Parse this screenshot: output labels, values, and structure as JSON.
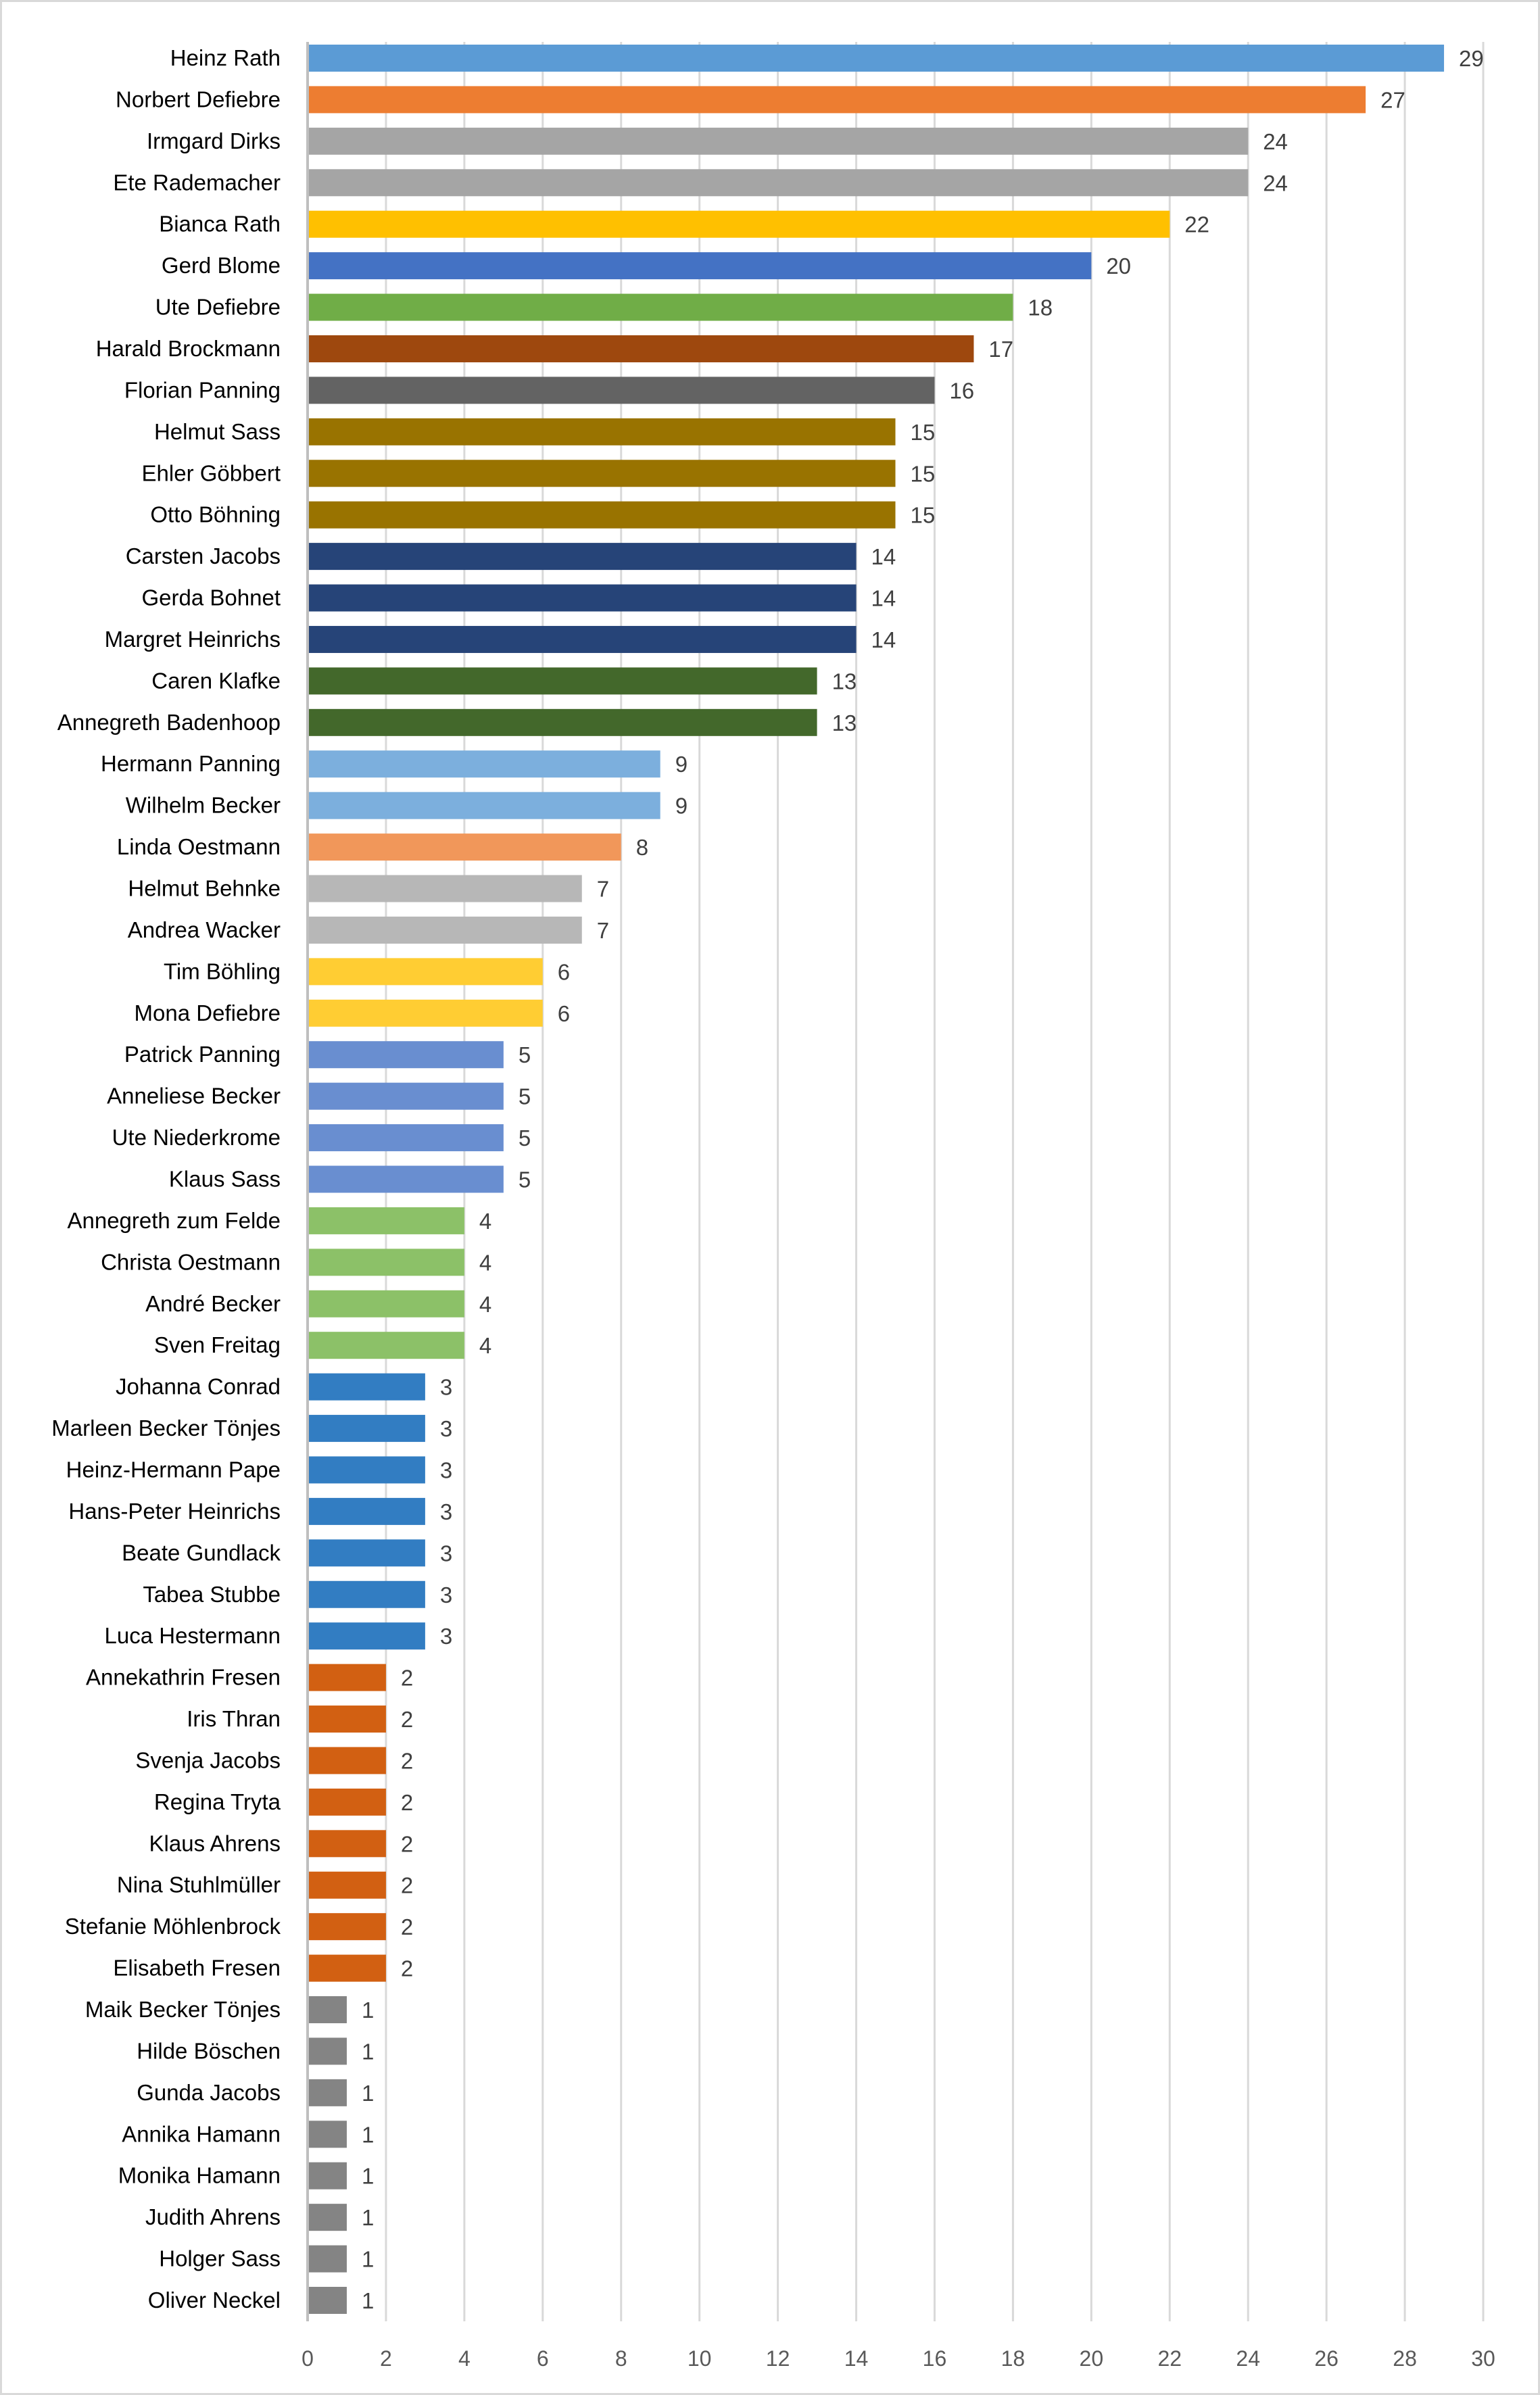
{
  "chart_data": {
    "type": "bar",
    "orientation": "horizontal",
    "title": "",
    "xlabel": "",
    "ylabel": "",
    "xlim": [
      0,
      30
    ],
    "x_ticks": [
      0,
      2,
      4,
      6,
      8,
      10,
      12,
      14,
      16,
      18,
      20,
      22,
      24,
      26,
      28,
      30
    ],
    "grid": "vertical",
    "data_labels": true,
    "categories": [
      "Heinz Rath",
      "Norbert Defiebre",
      "Irmgard Dirks",
      "Ete Rademacher",
      "Bianca Rath",
      "Gerd Blome",
      "Ute Defiebre",
      "Harald Brockmann",
      "Florian Panning",
      "Helmut Sass",
      "Ehler Göbbert",
      "Otto Böhning",
      "Carsten Jacobs",
      "Gerda Bohnet",
      "Margret Heinrichs",
      "Caren Klafke",
      "Annegreth Badenhoop",
      "Hermann Panning",
      "Wilhelm Becker",
      "Linda Oestmann",
      "Helmut Behnke",
      "Andrea Wacker",
      "Tim Böhling",
      "Mona Defiebre",
      "Patrick Panning",
      "Anneliese Becker",
      "Ute Niederkrome",
      "Klaus Sass",
      "Annegreth zum Felde",
      "Christa Oestmann",
      "André Becker",
      "Sven Freitag",
      "Johanna Conrad",
      "Marleen Becker Tönjes",
      "Heinz-Hermann Pape",
      "Hans-Peter Heinrichs",
      "Beate Gundlack",
      "Tabea Stubbe",
      "Luca Hestermann",
      "Annekathrin Fresen",
      "Iris Thran",
      "Svenja Jacobs",
      "Regina Tryta",
      "Klaus Ahrens",
      "Nina Stuhlmüller",
      "Stefanie Möhlenbrock",
      "Elisabeth Fresen",
      "Maik Becker Tönjes",
      "Hilde Böschen",
      "Gunda Jacobs",
      "Annika Hamann",
      "Monika Hamann",
      "Judith Ahrens",
      "Holger Sass",
      "Oliver Neckel"
    ],
    "values": [
      29,
      27,
      24,
      24,
      22,
      20,
      18,
      17,
      16,
      15,
      15,
      15,
      14,
      14,
      14,
      13,
      13,
      9,
      9,
      8,
      7,
      7,
      6,
      6,
      5,
      5,
      5,
      5,
      4,
      4,
      4,
      4,
      3,
      3,
      3,
      3,
      3,
      3,
      3,
      2,
      2,
      2,
      2,
      2,
      2,
      2,
      2,
      1,
      1,
      1,
      1,
      1,
      1,
      1,
      1
    ],
    "colors": [
      "#5b9bd5",
      "#ed7d31",
      "#a5a5a5",
      "#a5a5a5",
      "#ffc000",
      "#4472c4",
      "#70ad47",
      "#9e480e",
      "#636363",
      "#997300",
      "#997300",
      "#997300",
      "#264478",
      "#264478",
      "#264478",
      "#43682b",
      "#43682b",
      "#7cafdd",
      "#7cafdd",
      "#f1975a",
      "#b7b7b7",
      "#b7b7b7",
      "#ffcd33",
      "#ffcd33",
      "#698ed0",
      "#698ed0",
      "#698ed0",
      "#698ed0",
      "#8cc168",
      "#8cc168",
      "#8cc168",
      "#8cc168",
      "#327dc2",
      "#327dc2",
      "#327dc2",
      "#327dc2",
      "#327dc2",
      "#327dc2",
      "#327dc2",
      "#d26012",
      "#d26012",
      "#d26012",
      "#d26012",
      "#d26012",
      "#d26012",
      "#d26012",
      "#d26012",
      "#848484",
      "#848484",
      "#848484",
      "#848484",
      "#848484",
      "#848484",
      "#848484",
      "#848484"
    ]
  }
}
